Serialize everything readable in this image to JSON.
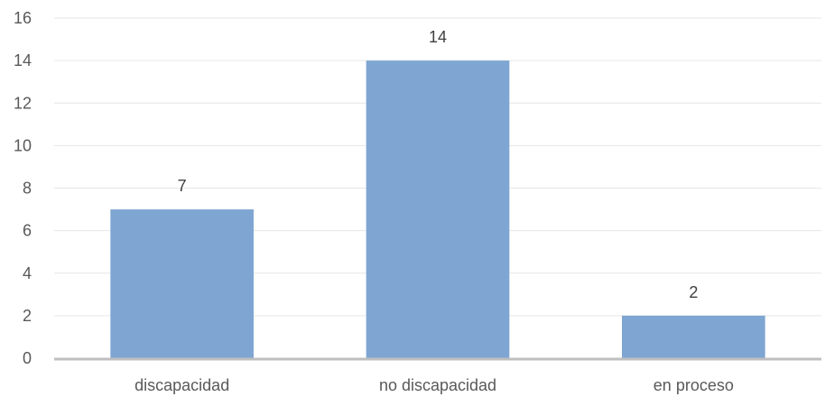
{
  "chart_data": {
    "type": "bar",
    "categories": [
      "discapacidad",
      "no discapacidad",
      "en proceso"
    ],
    "values": [
      7,
      14,
      2
    ],
    "ylim": [
      0,
      16
    ],
    "yticks": [
      0,
      2,
      4,
      6,
      8,
      10,
      12,
      14,
      16
    ],
    "data_labels": [
      "7",
      "14",
      "2"
    ],
    "grid": true,
    "legend": "none",
    "colors": {
      "bar": "#7fa6d2",
      "grid": "#e6e6e6",
      "axis": "#bfbfbf",
      "text": "#595959"
    }
  }
}
